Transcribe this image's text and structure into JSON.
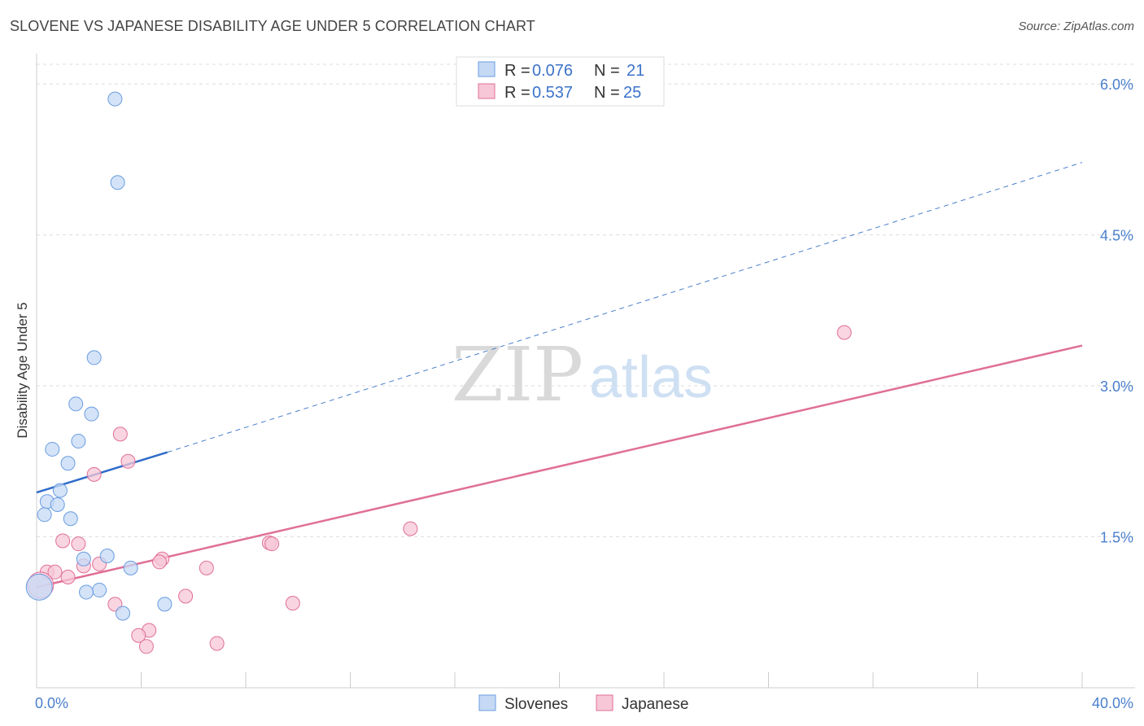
{
  "chart_data": {
    "type": "scatter",
    "title": "SLOVENE VS JAPANESE DISABILITY AGE UNDER 5 CORRELATION CHART",
    "source": "Source: ZipAtlas.com",
    "xlabel": "",
    "ylabel": "Disability Age Under 5",
    "xlim": [
      0,
      40
    ],
    "ylim": [
      0,
      6.3
    ],
    "x_tick_labels": [
      "0.0%",
      "40.0%"
    ],
    "y_ticks": [
      1.5,
      3.0,
      4.5,
      6.0
    ],
    "y_tick_labels": [
      "1.5%",
      "3.0%",
      "4.5%",
      "6.0%"
    ],
    "watermark": {
      "zip": "ZIP",
      "atlas": "atlas"
    },
    "legend": [
      {
        "name": "Slovenes",
        "r_label": "R =",
        "r_value": "0.076",
        "n_label": "N =",
        "n_value": "21"
      },
      {
        "name": "Japanese",
        "r_label": "R =",
        "r_value": "0.537",
        "n_label": "N =",
        "n_value": "25"
      }
    ],
    "series": [
      {
        "name": "Slovenes",
        "color": "#6a9de0",
        "fill": "#c5d9f5",
        "points": [
          [
            3.0,
            5.85
          ],
          [
            3.1,
            5.02
          ],
          [
            2.2,
            3.28
          ],
          [
            1.5,
            2.82
          ],
          [
            2.1,
            2.72
          ],
          [
            1.6,
            2.45
          ],
          [
            0.6,
            2.37
          ],
          [
            1.2,
            2.23
          ],
          [
            0.9,
            1.96
          ],
          [
            0.4,
            1.85
          ],
          [
            0.8,
            1.82
          ],
          [
            0.3,
            1.72
          ],
          [
            1.3,
            1.68
          ],
          [
            2.7,
            1.31
          ],
          [
            1.8,
            1.28
          ],
          [
            3.6,
            1.19
          ],
          [
            2.4,
            0.97
          ],
          [
            1.9,
            0.95
          ],
          [
            4.9,
            0.83
          ],
          [
            3.3,
            0.74
          ],
          [
            0.1,
            1.0
          ]
        ],
        "trend": {
          "x": [
            0,
            5.0
          ],
          "y": [
            1.94,
            2.34
          ]
        },
        "trend_extension": {
          "x": [
            5.0,
            40
          ],
          "y": [
            2.34,
            5.22
          ]
        }
      },
      {
        "name": "Japanese",
        "color": "#e06f97",
        "fill": "#f7c7d7",
        "points": [
          [
            30.9,
            3.53
          ],
          [
            3.2,
            2.52
          ],
          [
            3.5,
            2.25
          ],
          [
            2.2,
            2.12
          ],
          [
            14.3,
            1.58
          ],
          [
            1.0,
            1.46
          ],
          [
            1.6,
            1.43
          ],
          [
            8.9,
            1.44
          ],
          [
            9.0,
            1.43
          ],
          [
            4.8,
            1.28
          ],
          [
            4.7,
            1.25
          ],
          [
            2.4,
            1.23
          ],
          [
            1.8,
            1.21
          ],
          [
            6.5,
            1.19
          ],
          [
            0.4,
            1.15
          ],
          [
            0.7,
            1.15
          ],
          [
            1.2,
            1.1
          ],
          [
            5.7,
            0.91
          ],
          [
            3.0,
            0.83
          ],
          [
            9.8,
            0.84
          ],
          [
            4.3,
            0.57
          ],
          [
            3.9,
            0.52
          ],
          [
            4.2,
            0.41
          ],
          [
            6.9,
            0.44
          ],
          [
            0.15,
            1.02
          ]
        ],
        "trend": {
          "x": [
            0,
            40
          ],
          "y": [
            1.0,
            3.4
          ]
        }
      }
    ]
  }
}
